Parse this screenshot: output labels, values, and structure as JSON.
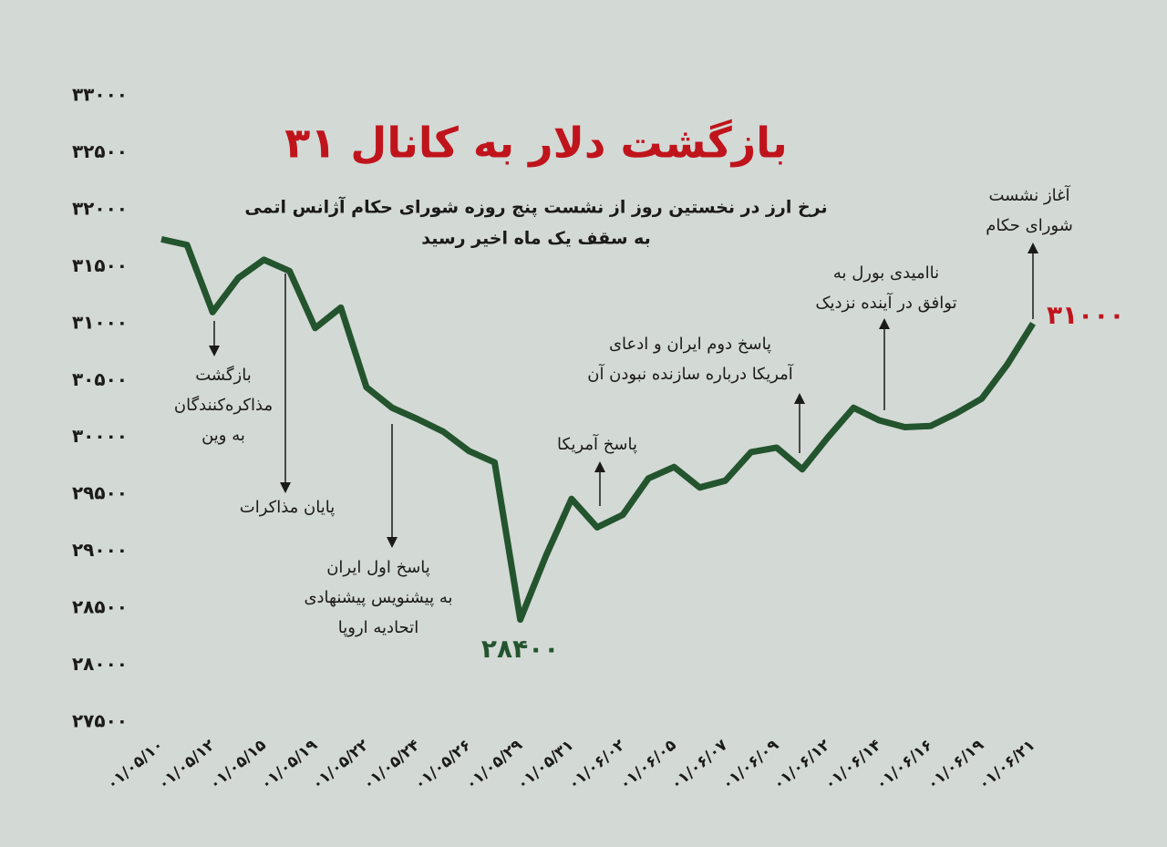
{
  "chart_data": {
    "type": "line",
    "title": "بازگشت دلار به کانال ۳۱",
    "subtitle": [
      "نرخ ارز در نخستین روز از نشست پنج روزه شورای حکام آژانس اتمی",
      "به سقف یک ماه اخیر رسید"
    ],
    "categories": [
      "۰۱/۰۵/۱۰",
      null,
      "۰۱/۰۵/۱۲",
      null,
      "۰۱/۰۵/۱۵",
      null,
      "۰۱/۰۵/۱۹",
      null,
      "۰۱/۰۵/۲۲",
      null,
      "۰۱/۰۵/۲۴",
      null,
      "۰۱/۰۵/۲۶",
      null,
      "۰۱/۰۵/۲۹",
      null,
      "۰۱/۰۵/۳۱",
      null,
      "۰۱/۰۶/۰۲",
      null,
      "۰۱/۰۶/۰۵",
      null,
      "۰۱/۰۶/۰۷",
      null,
      "۰۱/۰۶/۰۹",
      null,
      "۰۱/۰۶/۱۲",
      null,
      "۰۱/۰۶/۱۴",
      null,
      "۰۱/۰۶/۱۶",
      null,
      "۰۱/۰۶/۱۹",
      null,
      "۰۱/۰۶/۲۱"
    ],
    "values": [
      31740,
      31690,
      31100,
      31400,
      31560,
      31460,
      30960,
      31140,
      30440,
      30260,
      30160,
      30050,
      29880,
      29780,
      28400,
      28960,
      29460,
      29210,
      29320,
      29640,
      29740,
      29560,
      29620,
      29870,
      29910,
      29720,
      30000,
      30260,
      30150,
      30090,
      30100,
      30210,
      30340,
      30640,
      31000
    ],
    "value_labels": [
      null,
      null,
      null,
      null,
      null,
      null,
      null,
      null,
      null,
      null,
      null,
      null,
      null,
      null,
      "۲۸۴۰۰",
      null,
      null,
      null,
      null,
      null,
      null,
      null,
      null,
      null,
      null,
      null,
      null,
      null,
      null,
      null,
      null,
      null,
      null,
      null,
      "۳۱۰۰۰"
    ],
    "value_label_colors": [
      null,
      null,
      null,
      null,
      null,
      null,
      null,
      null,
      null,
      null,
      null,
      null,
      null,
      null,
      "#23542e",
      null,
      null,
      null,
      null,
      null,
      null,
      null,
      null,
      null,
      null,
      null,
      null,
      null,
      null,
      null,
      null,
      null,
      null,
      null,
      "#c0141c"
    ],
    "color": "#23542e",
    "ylim": [
      27500,
      33000
    ],
    "yticks": [
      {
        "value": 27500,
        "label": "۲۷۵۰۰"
      },
      {
        "value": 28000,
        "label": "۲۸۰۰۰"
      },
      {
        "value": 28500,
        "label": "۲۸۵۰۰"
      },
      {
        "value": 29000,
        "label": "۲۹۰۰۰"
      },
      {
        "value": 29500,
        "label": "۲۹۵۰۰"
      },
      {
        "value": 30000,
        "label": "۳۰۰۰۰"
      },
      {
        "value": 30500,
        "label": "۳۰۵۰۰"
      },
      {
        "value": 31000,
        "label": "۳۱۰۰۰"
      },
      {
        "value": 31500,
        "label": "۳۱۵۰۰"
      },
      {
        "value": 32000,
        "label": "۳۲۰۰۰"
      },
      {
        "value": 32500,
        "label": "۳۲۵۰۰"
      },
      {
        "value": 33000,
        "label": "۳۳۰۰۰"
      }
    ],
    "annotations": [
      {
        "lines": [
          "بازگشت",
          "مذاکره‌کنندگان",
          "به وین"
        ]
      },
      {
        "lines": [
          "پایان مذاکرات"
        ]
      },
      {
        "lines": [
          "پاسخ اول ایران",
          "به پیشنویس پیشنهادی",
          "اتحادیه اروپا"
        ]
      },
      {
        "lines": [
          "پاسخ آمریکا"
        ]
      },
      {
        "lines": [
          "پاسخ دوم ایران و ادعای",
          "آمریکا درباره سازنده نبودن آن"
        ]
      },
      {
        "lines": [
          "ناامیدی بورل به",
          "توافق در آینده نزدیک"
        ]
      },
      {
        "lines": [
          "آغاز نشست",
          "شورای حکام"
        ]
      }
    ]
  }
}
